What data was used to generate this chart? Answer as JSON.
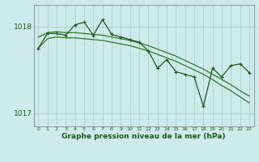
{
  "title": "Graphe pression niveau de la mer (hPa)",
  "background_color": "#ceeaea",
  "grid_color": "#add4d4",
  "line_color_dark": "#1a5c1a",
  "line_color_mid": "#2d7a2d",
  "xlim": [
    -0.5,
    23.5
  ],
  "ylim": [
    1016.85,
    1018.25
  ],
  "yticks": [
    1017,
    1018
  ],
  "xticks": [
    0,
    1,
    2,
    3,
    4,
    5,
    6,
    7,
    8,
    9,
    10,
    11,
    12,
    13,
    14,
    15,
    16,
    17,
    18,
    19,
    20,
    21,
    22,
    23
  ],
  "hours": [
    0,
    1,
    2,
    3,
    4,
    5,
    6,
    7,
    8,
    9,
    10,
    11,
    12,
    13,
    14,
    15,
    16,
    17,
    18,
    19,
    20,
    21,
    22,
    23
  ],
  "series_jagged": [
    1017.75,
    1017.92,
    1017.92,
    1017.9,
    1018.02,
    1018.05,
    1017.9,
    1018.08,
    1017.91,
    1017.88,
    1017.85,
    1017.82,
    1017.72,
    1017.52,
    1017.62,
    1017.48,
    1017.45,
    1017.42,
    1017.08,
    1017.52,
    1017.42,
    1017.55,
    1017.57,
    1017.47
  ],
  "series_upper": [
    1017.88,
    1017.93,
    1017.94,
    1017.93,
    1017.93,
    1017.92,
    1017.91,
    1017.9,
    1017.88,
    1017.86,
    1017.84,
    1017.81,
    1017.78,
    1017.74,
    1017.7,
    1017.66,
    1017.61,
    1017.56,
    1017.51,
    1017.45,
    1017.39,
    1017.33,
    1017.26,
    1017.2
  ],
  "series_lower": [
    1017.75,
    1017.86,
    1017.88,
    1017.87,
    1017.87,
    1017.86,
    1017.85,
    1017.84,
    1017.82,
    1017.8,
    1017.78,
    1017.75,
    1017.72,
    1017.68,
    1017.64,
    1017.6,
    1017.55,
    1017.5,
    1017.45,
    1017.39,
    1017.32,
    1017.26,
    1017.19,
    1017.12
  ]
}
